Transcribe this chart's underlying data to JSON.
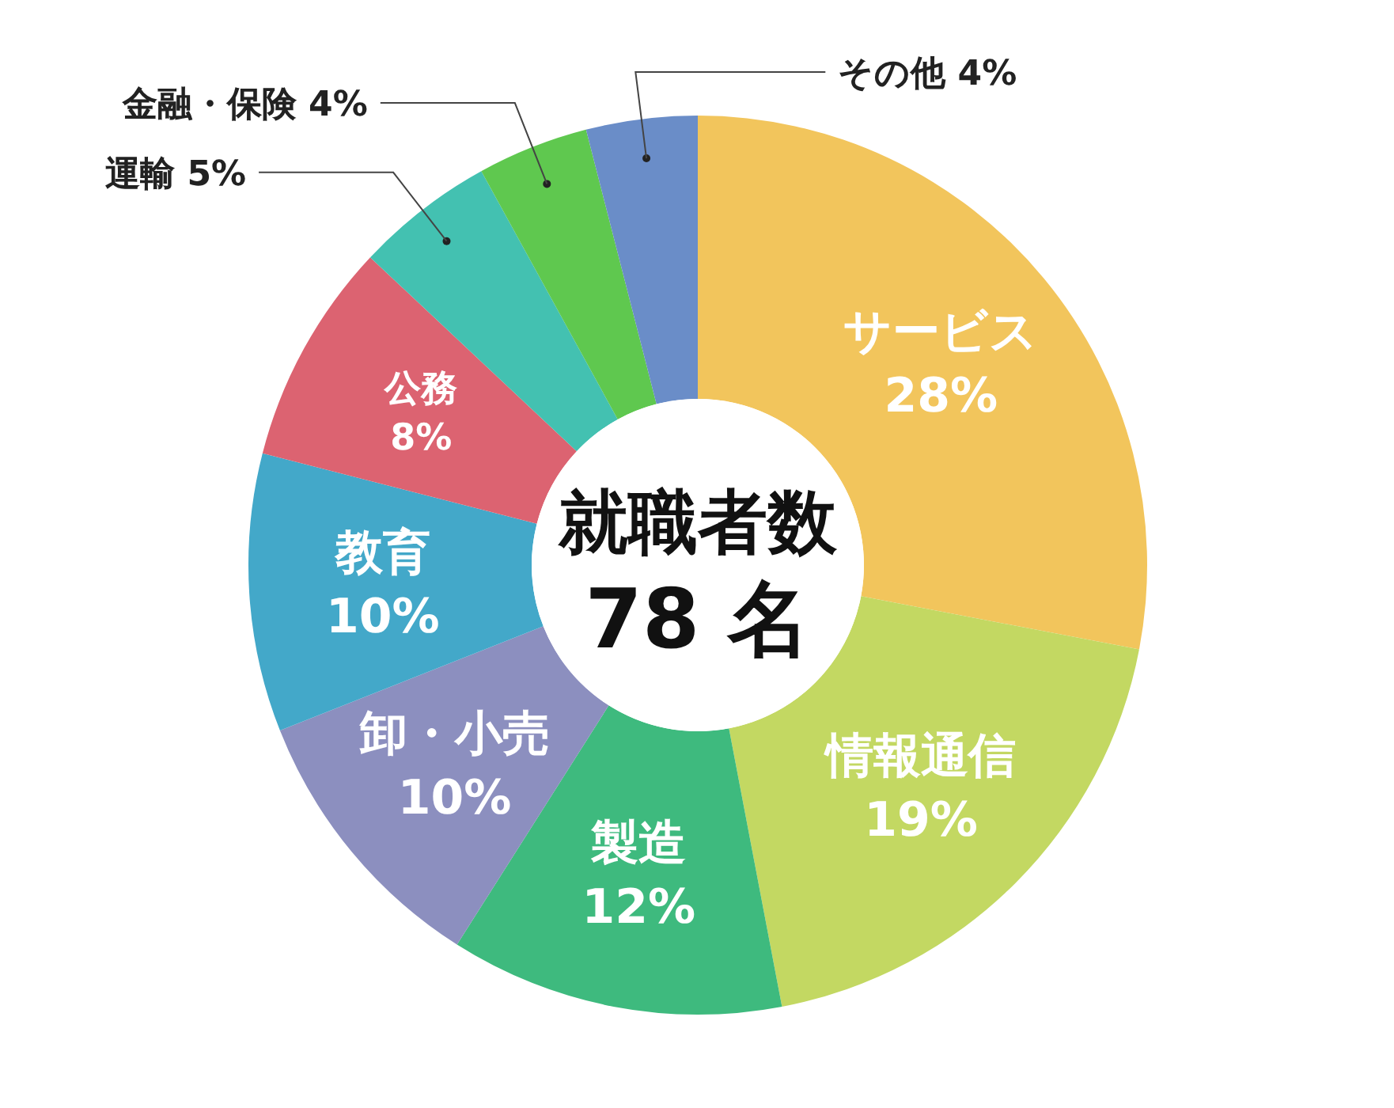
{
  "chart_data": {
    "type": "donut",
    "title": "就職者数",
    "subtitle": "78 名",
    "categories": [
      "サービス",
      "情報通信",
      "製造",
      "卸・小売",
      "教育",
      "公務",
      "運輸",
      "金融・保険",
      "その他"
    ],
    "values": [
      28,
      19,
      12,
      10,
      10,
      8,
      5,
      4,
      4
    ],
    "value_labels": [
      "28%",
      "19%",
      "12%",
      "10%",
      "10%",
      "8%",
      "5%",
      "4%",
      "4%"
    ],
    "colors": [
      "#f2c55c",
      "#c3d862",
      "#3eba7e",
      "#8c8fbf",
      "#43a8c9",
      "#dc6371",
      "#43c1b1",
      "#5fc84f",
      "#6a8dc8"
    ],
    "legend": false
  }
}
